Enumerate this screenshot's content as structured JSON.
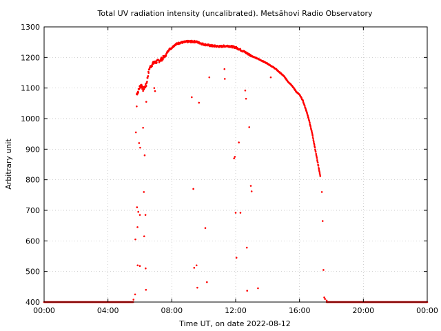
{
  "chart_data": {
    "type": "scatter",
    "title": "Total UV radiation intensity (uncalibrated). Metsähovi Radio Observatory",
    "xlabel": "Time UT, on date 2022-08-12",
    "ylabel": "Arbitrary unit",
    "xlim": [
      0,
      24
    ],
    "ylim": [
      400,
      1300
    ],
    "x_ticks": [
      {
        "value": 0,
        "label": "00:00"
      },
      {
        "value": 4,
        "label": "04:00"
      },
      {
        "value": 8,
        "label": "08:00"
      },
      {
        "value": 12,
        "label": "12:00"
      },
      {
        "value": 16,
        "label": "16:00"
      },
      {
        "value": 20,
        "label": "20:00"
      },
      {
        "value": 24,
        "label": "00:00"
      }
    ],
    "y_ticks": [
      400,
      500,
      600,
      700,
      800,
      900,
      1000,
      1100,
      1200,
      1300
    ],
    "grid": true,
    "marker_color": "#ff0000",
    "main_curve": [
      [
        5.8,
        1080
      ],
      [
        5.9,
        1090
      ],
      [
        6.0,
        1105
      ],
      [
        6.1,
        1110
      ],
      [
        6.2,
        1095
      ],
      [
        6.4,
        1110
      ],
      [
        6.5,
        1140
      ],
      [
        6.6,
        1165
      ],
      [
        6.8,
        1180
      ],
      [
        7.0,
        1185
      ],
      [
        7.3,
        1192
      ],
      [
        7.6,
        1205
      ],
      [
        7.8,
        1225
      ],
      [
        8.0,
        1232
      ],
      [
        8.2,
        1242
      ],
      [
        8.5,
        1248
      ],
      [
        9.0,
        1252
      ],
      [
        9.5,
        1252
      ],
      [
        10.0,
        1243
      ],
      [
        10.5,
        1238
      ],
      [
        11.0,
        1236
      ],
      [
        11.5,
        1238
      ],
      [
        12.0,
        1233
      ],
      [
        12.5,
        1220
      ],
      [
        13.0,
        1205
      ],
      [
        13.5,
        1193
      ],
      [
        14.0,
        1180
      ],
      [
        14.5,
        1163
      ],
      [
        15.0,
        1140
      ],
      [
        15.3,
        1120
      ],
      [
        15.5,
        1110
      ],
      [
        15.8,
        1088
      ],
      [
        16.0,
        1078
      ],
      [
        16.2,
        1060
      ],
      [
        16.4,
        1030
      ],
      [
        16.6,
        995
      ],
      [
        16.8,
        950
      ],
      [
        17.0,
        895
      ],
      [
        17.2,
        840
      ],
      [
        17.3,
        812
      ]
    ],
    "outliers": [
      [
        5.6,
        408
      ],
      [
        5.7,
        425
      ],
      [
        5.72,
        605
      ],
      [
        5.75,
        955
      ],
      [
        5.8,
        1040
      ],
      [
        5.82,
        710
      ],
      [
        5.85,
        645
      ],
      [
        5.86,
        520
      ],
      [
        5.9,
        695
      ],
      [
        5.95,
        920
      ],
      [
        6.0,
        685
      ],
      [
        6.0,
        518
      ],
      [
        6.02,
        905
      ],
      [
        6.2,
        970
      ],
      [
        6.25,
        760
      ],
      [
        6.27,
        615
      ],
      [
        6.3,
        880
      ],
      [
        6.35,
        685
      ],
      [
        6.36,
        510
      ],
      [
        6.38,
        440
      ],
      [
        6.4,
        1055
      ],
      [
        6.9,
        1100
      ],
      [
        6.95,
        1090
      ],
      [
        9.25,
        1070
      ],
      [
        9.35,
        770
      ],
      [
        9.4,
        512
      ],
      [
        9.55,
        520
      ],
      [
        9.6,
        447
      ],
      [
        9.7,
        1052
      ],
      [
        10.1,
        642
      ],
      [
        10.2,
        465
      ],
      [
        10.35,
        1135
      ],
      [
        11.3,
        1162
      ],
      [
        11.32,
        1130
      ],
      [
        11.9,
        870
      ],
      [
        11.95,
        875
      ],
      [
        12.0,
        692
      ],
      [
        12.05,
        545
      ],
      [
        12.2,
        922
      ],
      [
        12.3,
        692
      ],
      [
        12.6,
        1092
      ],
      [
        12.65,
        1065
      ],
      [
        12.7,
        578
      ],
      [
        12.72,
        437
      ],
      [
        12.85,
        972
      ],
      [
        12.95,
        780
      ],
      [
        13.0,
        762
      ],
      [
        13.4,
        445
      ],
      [
        14.2,
        1135
      ],
      [
        17.4,
        760
      ],
      [
        17.45,
        665
      ],
      [
        17.5,
        505
      ],
      [
        17.55,
        415
      ],
      [
        17.6,
        410
      ],
      [
        17.7,
        405
      ]
    ],
    "baseline_segments": [
      [
        0.0,
        5.6,
        400
      ],
      [
        17.7,
        24.0,
        400
      ]
    ]
  }
}
